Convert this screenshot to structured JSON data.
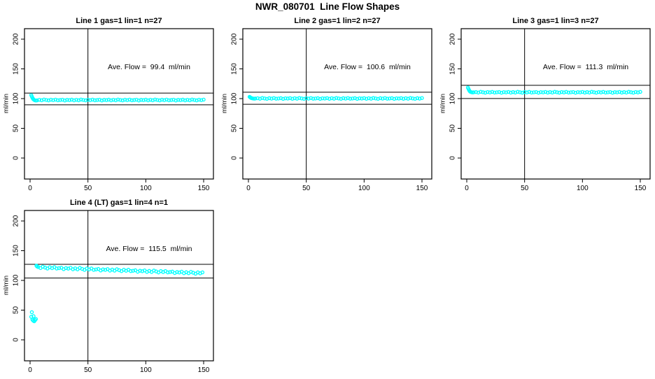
{
  "page": {
    "title": "NWR_080701  Line Flow Shapes"
  },
  "colors": {
    "points": "#00ffff",
    "axis": "#000000",
    "background": "#ffffff"
  },
  "chart_data": [
    {
      "type": "scatter",
      "title": "Line 1 gas=1 lin=1 n=27",
      "annotation": "Ave. Flow =  99.4  ml/min",
      "ave_flow": 99.4,
      "ylabel": "ml/min",
      "xlabel": "",
      "xticks": [
        0,
        50,
        100,
        150
      ],
      "yticks": [
        0,
        50,
        100,
        150,
        200
      ],
      "xlim": [
        -6,
        158
      ],
      "ylim": [
        -35,
        218
      ],
      "grid": false,
      "vline_x": 50,
      "hlines": [
        109.3,
        89.5
      ],
      "series": [
        {
          "name": "flow",
          "x": [
            1,
            1.5,
            2,
            2.5,
            3,
            4,
            5,
            6,
            8,
            10,
            12,
            14,
            16,
            18,
            20,
            22,
            24,
            26,
            28,
            30,
            32,
            34,
            36,
            38,
            40,
            42,
            44,
            46,
            48,
            50,
            52,
            54,
            56,
            58,
            60,
            62,
            64,
            66,
            68,
            70,
            72,
            74,
            76,
            78,
            80,
            82,
            84,
            86,
            88,
            90,
            92,
            94,
            96,
            98,
            100,
            102,
            104,
            106,
            108,
            110,
            112,
            114,
            116,
            118,
            120,
            122,
            124,
            126,
            128,
            130,
            132,
            134,
            136,
            138,
            140,
            142,
            144,
            146,
            148,
            150
          ],
          "y": [
            105.8,
            103.5,
            101.4,
            99.8,
            98.6,
            97.2,
            96.8,
            97.0,
            98.0,
            97.2,
            98.4,
            97.7,
            97.0,
            98.1,
            97.4,
            98.3,
            97.2,
            97.6,
            98.1,
            96.9,
            97.9,
            97.5,
            98.2,
            97.1,
            98.0,
            97.2,
            98.4,
            97.7,
            97.0,
            98.1,
            97.4,
            98.3,
            97.2,
            97.6,
            98.1,
            96.9,
            97.9,
            97.5,
            98.2,
            97.1,
            98.0,
            97.2,
            98.4,
            97.7,
            97.0,
            98.1,
            97.4,
            98.3,
            97.2,
            97.6,
            98.1,
            96.9,
            97.9,
            97.5,
            98.2,
            97.1,
            98.0,
            97.2,
            98.4,
            97.7,
            97.0,
            98.1,
            97.4,
            98.3,
            97.2,
            97.6,
            98.1,
            96.9,
            97.9,
            97.5,
            98.2,
            97.1,
            98.0,
            97.2,
            98.4,
            97.7,
            97.0,
            98.1,
            97.4,
            98.3
          ]
        }
      ]
    },
    {
      "type": "scatter",
      "title": "Line 2 gas=1 lin=2 n=27",
      "annotation": "Ave. Flow =  100.6  ml/min",
      "ave_flow": 100.6,
      "ylabel": "ml/min",
      "xlabel": "",
      "xticks": [
        0,
        50,
        100,
        150
      ],
      "yticks": [
        0,
        50,
        100,
        150,
        200
      ],
      "xlim": [
        -6,
        158
      ],
      "ylim": [
        -35,
        218
      ],
      "grid": false,
      "vline_x": 50,
      "hlines": [
        110.7,
        90.5
      ],
      "series": [
        {
          "name": "flow",
          "x": [
            1,
            1.5,
            2,
            2.5,
            3,
            4,
            5,
            6,
            8,
            10,
            12,
            14,
            16,
            18,
            20,
            22,
            24,
            26,
            28,
            30,
            32,
            34,
            36,
            38,
            40,
            42,
            44,
            46,
            48,
            50,
            52,
            54,
            56,
            58,
            60,
            62,
            64,
            66,
            68,
            70,
            72,
            74,
            76,
            78,
            80,
            82,
            84,
            86,
            88,
            90,
            92,
            94,
            96,
            98,
            100,
            102,
            104,
            106,
            108,
            110,
            112,
            114,
            116,
            118,
            120,
            122,
            124,
            126,
            128,
            130,
            132,
            134,
            136,
            138,
            140,
            142,
            144,
            146,
            148,
            150
          ],
          "y": [
            103.0,
            102.2,
            101.5,
            101.0,
            100.6,
            100.2,
            99.9,
            100.1,
            100.6,
            99.8,
            101.0,
            100.3,
            99.6,
            100.7,
            100.0,
            100.9,
            99.8,
            100.2,
            100.7,
            99.5,
            100.5,
            100.1,
            100.8,
            99.7,
            100.6,
            99.8,
            101.0,
            100.3,
            99.6,
            100.7,
            100.0,
            100.9,
            99.8,
            100.2,
            100.7,
            99.5,
            100.5,
            100.1,
            100.8,
            99.7,
            100.6,
            99.8,
            101.0,
            100.3,
            99.6,
            100.7,
            100.0,
            100.9,
            99.8,
            100.2,
            100.7,
            99.5,
            100.5,
            100.1,
            100.8,
            99.7,
            100.6,
            99.8,
            101.0,
            100.3,
            99.6,
            100.7,
            100.0,
            100.9,
            99.8,
            100.2,
            100.7,
            99.5,
            100.5,
            100.1,
            100.8,
            99.7,
            100.6,
            99.8,
            101.0,
            100.3,
            99.6,
            100.7,
            100.0,
            100.9
          ]
        }
      ]
    },
    {
      "type": "scatter",
      "title": "Line 3 gas=1 lin=3 n=27",
      "annotation": "Ave. Flow =  111.3  ml/min",
      "ave_flow": 111.3,
      "ylabel": "ml/min",
      "xlabel": "",
      "xticks": [
        0,
        50,
        100,
        150
      ],
      "yticks": [
        0,
        50,
        100,
        150,
        200
      ],
      "xlim": [
        -6,
        158
      ],
      "ylim": [
        -35,
        218
      ],
      "grid": false,
      "vline_x": 50,
      "hlines": [
        122.4,
        100.2
      ],
      "series": [
        {
          "name": "flow",
          "x": [
            1,
            1.5,
            2,
            2.5,
            3,
            4,
            5,
            6,
            8,
            10,
            12,
            14,
            16,
            18,
            20,
            22,
            24,
            26,
            28,
            30,
            32,
            34,
            36,
            38,
            40,
            42,
            44,
            46,
            48,
            50,
            52,
            54,
            56,
            58,
            60,
            62,
            64,
            66,
            68,
            70,
            72,
            74,
            76,
            78,
            80,
            82,
            84,
            86,
            88,
            90,
            92,
            94,
            96,
            98,
            100,
            102,
            104,
            106,
            108,
            110,
            112,
            114,
            116,
            118,
            120,
            122,
            124,
            126,
            128,
            130,
            132,
            134,
            136,
            138,
            140,
            142,
            144,
            146,
            148,
            150
          ],
          "y": [
            118.6,
            116.3,
            114.2,
            112.6,
            111.6,
            110.8,
            110.4,
            110.6,
            111.0,
            110.2,
            111.4,
            110.7,
            110.0,
            111.1,
            110.4,
            111.3,
            110.2,
            110.6,
            111.1,
            109.9,
            110.9,
            110.5,
            111.2,
            110.1,
            111.0,
            110.2,
            111.4,
            110.7,
            110.0,
            111.1,
            110.4,
            111.3,
            110.2,
            110.6,
            111.1,
            109.9,
            110.9,
            110.5,
            111.2,
            110.1,
            111.0,
            110.2,
            111.4,
            110.7,
            110.0,
            111.1,
            110.4,
            111.3,
            110.2,
            110.6,
            111.1,
            109.9,
            110.9,
            110.5,
            111.2,
            110.1,
            111.0,
            110.2,
            111.4,
            110.7,
            110.0,
            111.1,
            110.4,
            111.3,
            110.2,
            110.6,
            111.1,
            109.9,
            110.9,
            110.5,
            111.2,
            110.1,
            111.0,
            110.2,
            111.4,
            110.7,
            110.0,
            111.1,
            110.4,
            111.3
          ]
        }
      ]
    },
    {
      "type": "scatter",
      "title": "Line 4 (LT) gas=1 lin=4 n=1",
      "annotation": "Ave. Flow =  115.5  ml/min",
      "ave_flow": 115.5,
      "ylabel": "ml/min",
      "xlabel": "",
      "xticks": [
        0,
        50,
        100,
        150
      ],
      "yticks": [
        0,
        50,
        100,
        150,
        200
      ],
      "xlim": [
        -6,
        158
      ],
      "ylim": [
        -35,
        218
      ],
      "grid": false,
      "vline_x": 50,
      "hlines": [
        127.1,
        104.0
      ],
      "series": [
        {
          "name": "flow",
          "x": [
            1,
            1.5,
            2,
            2.7,
            3,
            3.6,
            4.3,
            5,
            5.5,
            6,
            7,
            9,
            11,
            13,
            15,
            17,
            19,
            21,
            23,
            25,
            27,
            29,
            31,
            33,
            35,
            37,
            39,
            41,
            43,
            45,
            47,
            49,
            51,
            53,
            55,
            57,
            59,
            61,
            63,
            65,
            67,
            69,
            71,
            73,
            75,
            77,
            79,
            81,
            83,
            85,
            87,
            89,
            91,
            93,
            95,
            97,
            99,
            101,
            103,
            105,
            107,
            109,
            111,
            113,
            115,
            117,
            119,
            121,
            123,
            125,
            127,
            129,
            131,
            133,
            135,
            137,
            139,
            141,
            143,
            145,
            147,
            149
          ],
          "y": [
            38.8,
            46.5,
            34.0,
            32.3,
            39.8,
            31.2,
            33.2,
            35.0,
            124.8,
            123.5,
            122.5,
            120.8,
            123.1,
            121.6,
            120.0,
            122.2,
            120.6,
            122.3,
            120.0,
            120.6,
            121.3,
            118.9,
            120.7,
            119.8,
            121.2,
            118.7,
            120.3,
            118.6,
            121.0,
            119.4,
            117.8,
            120.0,
            118.4,
            120.1,
            117.8,
            118.4,
            119.2,
            116.7,
            118.5,
            117.7,
            119.0,
            116.5,
            118.2,
            116.4,
            118.8,
            117.2,
            115.6,
            117.9,
            116.2,
            117.9,
            115.7,
            116.2,
            117.0,
            114.6,
            116.3,
            115.5,
            116.8,
            114.3,
            116.0,
            114.2,
            116.6,
            115.1,
            113.4,
            115.7,
            114.1,
            115.7,
            113.5,
            114.1,
            114.8,
            112.4,
            114.1,
            113.3,
            114.7,
            112.1,
            113.8,
            112.1,
            114.4,
            112.9,
            111.3,
            113.5,
            111.9,
            113.5
          ]
        }
      ]
    }
  ]
}
